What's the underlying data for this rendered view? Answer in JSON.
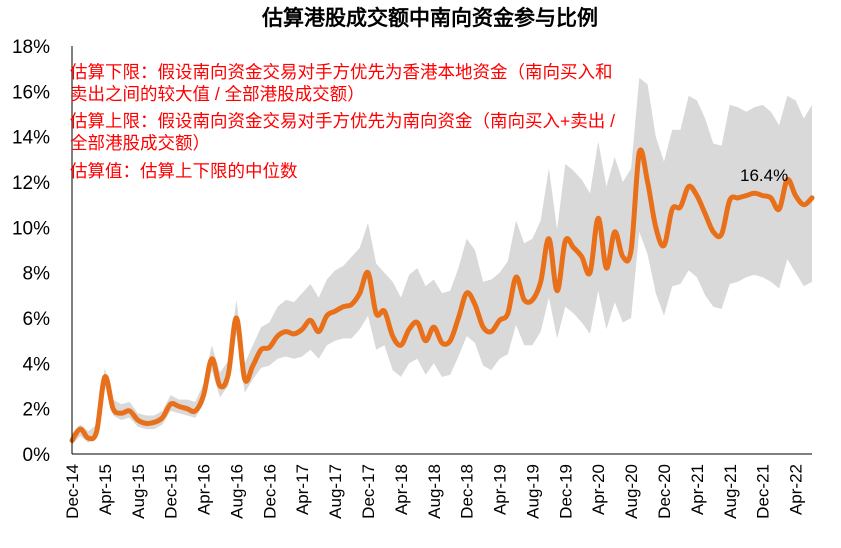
{
  "chart_data": {
    "type": "area",
    "title": "估算港股成交额中南向资金参与比例",
    "xlabel": "",
    "ylabel": "",
    "ylim": [
      0,
      18
    ],
    "y_ticks": [
      "0%",
      "2%",
      "4%",
      "6%",
      "8%",
      "10%",
      "12%",
      "14%",
      "16%",
      "18%"
    ],
    "x_ticks": [
      "Dec-14",
      "Apr-15",
      "Aug-15",
      "Dec-15",
      "Apr-16",
      "Aug-16",
      "Dec-16",
      "Apr-17",
      "Aug-17",
      "Dec-17",
      "Apr-18",
      "Aug-18",
      "Dec-18",
      "Apr-19",
      "Aug-19",
      "Dec-19",
      "Apr-20",
      "Aug-20",
      "Dec-20",
      "Apr-21",
      "Aug-21",
      "Dec-21",
      "Apr-22"
    ],
    "grid": false,
    "legend": "none",
    "colors": {
      "line": "#e8701a",
      "band": "#d9d9d9"
    },
    "annotations": [
      "估算下限：假设南向资金交易对手方优先为香港本地资金（南向买入和",
      "卖出之间的较大值 / 全部港股成交额）",
      "估算上限：假设南向资金交易对手方优先为南向资金（南向买入+卖出 /",
      "全部港股成交额）",
      "估算值：估算上下限的中位数"
    ],
    "data_label": "16.4%",
    "series": [
      {
        "name": "估算值",
        "x": [
          0,
          1,
          2,
          3,
          4,
          5,
          6,
          7,
          8,
          9,
          10,
          11,
          12,
          13,
          14,
          15,
          16,
          17,
          18,
          19,
          20,
          21,
          22,
          23,
          24,
          25,
          26,
          27,
          28,
          29,
          30,
          31,
          32,
          33,
          34,
          35,
          36,
          37,
          38,
          39,
          40,
          41,
          42,
          43,
          44,
          45,
          46,
          47,
          48,
          49,
          50,
          51,
          52,
          53,
          54,
          55,
          56,
          57,
          58,
          59,
          60,
          61,
          62,
          63,
          64,
          65,
          66,
          67,
          68,
          69,
          70,
          71,
          72,
          73,
          74,
          75,
          76,
          77,
          78,
          79,
          80,
          81,
          82,
          83,
          84,
          85,
          86,
          87,
          88,
          89,
          90
        ],
        "values": [
          0.6,
          1.1,
          0.7,
          1.0,
          3.4,
          2.0,
          1.8,
          1.9,
          1.5,
          1.35,
          1.4,
          1.6,
          2.2,
          2.1,
          2.0,
          1.9,
          2.6,
          4.2,
          3.0,
          3.5,
          6.0,
          3.3,
          3.9,
          4.6,
          4.7,
          5.2,
          5.4,
          5.3,
          5.5,
          5.9,
          5.4,
          6.1,
          6.3,
          6.5,
          6.6,
          7.1,
          8.0,
          6.2,
          6.3,
          5.2,
          4.8,
          5.5,
          5.8,
          5.0,
          5.6,
          4.9,
          5.0,
          6.0,
          7.1,
          6.6,
          5.6,
          5.4,
          5.9,
          6.2,
          7.8,
          6.8,
          6.8,
          7.6,
          9.5,
          7.2,
          9.4,
          9.1,
          8.7,
          8.0,
          10.4,
          8.2,
          9.8,
          8.7,
          9.0,
          13.3,
          12.0,
          10.0,
          9.2,
          10.8,
          10.9,
          11.8,
          11.4,
          10.6,
          9.8,
          9.7,
          11.2,
          11.3,
          11.4,
          11.5,
          11.4,
          11.3,
          10.8,
          12.1,
          11.4,
          11.0,
          11.3
        ]
      },
      {
        "name": "估算上限",
        "values": [
          0.9,
          1.3,
          1.0,
          1.3,
          3.8,
          2.4,
          2.2,
          2.3,
          1.8,
          1.7,
          1.7,
          1.9,
          2.6,
          2.4,
          2.4,
          2.3,
          3.1,
          4.8,
          3.6,
          4.1,
          6.8,
          4.0,
          4.8,
          5.6,
          5.8,
          6.5,
          6.8,
          6.7,
          7.1,
          7.5,
          6.9,
          7.7,
          8.1,
          8.3,
          8.7,
          9.1,
          10.2,
          8.4,
          8.0,
          7.6,
          6.9,
          7.9,
          8.2,
          7.4,
          7.7,
          7.1,
          7.2,
          8.2,
          9.5,
          9.0,
          7.6,
          7.7,
          8.0,
          8.5,
          10.3,
          9.3,
          9.5,
          10.3,
          12.6,
          9.9,
          12.8,
          12.5,
          12.1,
          11.5,
          13.8,
          11.8,
          13.1,
          12.0,
          12.6,
          16.6,
          16.3,
          14.0,
          12.9,
          14.3,
          14.3,
          15.8,
          15.6,
          14.8,
          13.7,
          13.6,
          15.4,
          15.3,
          15.1,
          15.3,
          15.4,
          15.1,
          14.5,
          15.8,
          15.6,
          14.8,
          15.4
        ]
      },
      {
        "name": "估算下限",
        "values": [
          0.4,
          0.8,
          0.5,
          0.8,
          3.0,
          1.7,
          1.5,
          1.6,
          1.2,
          1.1,
          1.1,
          1.3,
          1.9,
          1.8,
          1.7,
          1.6,
          2.2,
          3.7,
          2.5,
          3.0,
          5.3,
          2.7,
          3.3,
          3.8,
          3.9,
          4.2,
          4.3,
          4.2,
          4.3,
          4.6,
          4.2,
          4.8,
          5.0,
          5.1,
          5.1,
          5.5,
          6.1,
          4.6,
          4.8,
          3.7,
          3.4,
          4.0,
          4.2,
          3.5,
          4.0,
          3.4,
          3.5,
          4.3,
          5.2,
          4.9,
          3.9,
          3.7,
          4.2,
          4.4,
          5.7,
          4.8,
          4.8,
          5.4,
          6.9,
          5.1,
          6.5,
          6.2,
          5.8,
          5.3,
          7.2,
          5.5,
          6.7,
          5.8,
          6.0,
          9.8,
          8.8,
          7.1,
          6.1,
          7.4,
          7.5,
          8.1,
          7.8,
          7.0,
          6.5,
          6.4,
          7.5,
          7.6,
          7.8,
          7.9,
          7.8,
          7.6,
          7.3,
          8.6,
          8.0,
          7.4,
          7.6
        ]
      }
    ]
  }
}
